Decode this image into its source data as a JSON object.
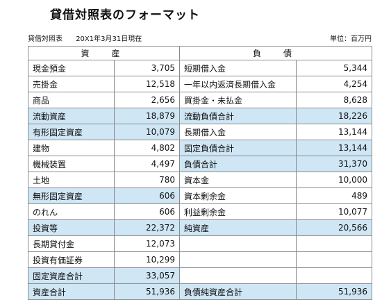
{
  "title": "貸借対照表のフォーマット",
  "meta": {
    "doc_name": "貸借対照表",
    "date": "20X1年3月31日現在",
    "unit": "単位：百万円"
  },
  "headers": {
    "assets": "資　産",
    "liabilities": "負　債"
  },
  "rows": [
    {
      "a_label": "現金預金",
      "a_value": "3,705",
      "a_hl": false,
      "l_label": "短期借入金",
      "l_value": "5,344",
      "l_hl": false
    },
    {
      "a_label": "売掛金",
      "a_value": "12,518",
      "a_hl": false,
      "l_label": "一年以内返済長期借入金",
      "l_value": "4,254",
      "l_hl": false
    },
    {
      "a_label": "商品",
      "a_value": "2,656",
      "a_hl": false,
      "l_label": "買掛金・未払金",
      "l_value": "8,628",
      "l_hl": false
    },
    {
      "a_label": "流動資産",
      "a_value": "18,879",
      "a_hl": true,
      "l_label": "流動負債合計",
      "l_value": "18,226",
      "l_hl": true
    },
    {
      "a_label": "有形固定資産",
      "a_value": "10,079",
      "a_hl": true,
      "l_label": "長期借入金",
      "l_value": "13,144",
      "l_hl": false
    },
    {
      "a_label": "建物",
      "a_value": "4,802",
      "a_hl": false,
      "l_label": "固定負債合計",
      "l_value": "13,144",
      "l_hl": true
    },
    {
      "a_label": "機械装置",
      "a_value": "4,497",
      "a_hl": false,
      "l_label": "負債合計",
      "l_value": "31,370",
      "l_hl": true
    },
    {
      "a_label": "土地",
      "a_value": "780",
      "a_hl": false,
      "l_label": "資本金",
      "l_value": "10,000",
      "l_hl": false
    },
    {
      "a_label": "無形固定資産",
      "a_value": "606",
      "a_hl": true,
      "l_label": "資本剰余金",
      "l_value": "489",
      "l_hl": false
    },
    {
      "a_label": "のれん",
      "a_value": "606",
      "a_hl": false,
      "l_label": "利益剰余金",
      "l_value": "10,077",
      "l_hl": false
    },
    {
      "a_label": "投資等",
      "a_value": "22,372",
      "a_hl": true,
      "l_label": "純資産",
      "l_value": "20,566",
      "l_hl": true
    },
    {
      "a_label": "長期貸付金",
      "a_value": "12,073",
      "a_hl": false,
      "l_label": "",
      "l_value": "",
      "l_hl": false
    },
    {
      "a_label": "投資有価証券",
      "a_value": "10,299",
      "a_hl": false,
      "l_label": "",
      "l_value": "",
      "l_hl": false
    },
    {
      "a_label": "固定資産合計",
      "a_value": "33,057",
      "a_hl": true,
      "l_label": "",
      "l_value": "",
      "l_hl": false
    },
    {
      "a_label": "資産合計",
      "a_value": "51,936",
      "a_hl": true,
      "l_label": "負債純資産合計",
      "l_value": "51,936",
      "l_hl": true
    }
  ],
  "colors": {
    "highlight": "#cfe6f5",
    "border": "#8a8a8a"
  }
}
